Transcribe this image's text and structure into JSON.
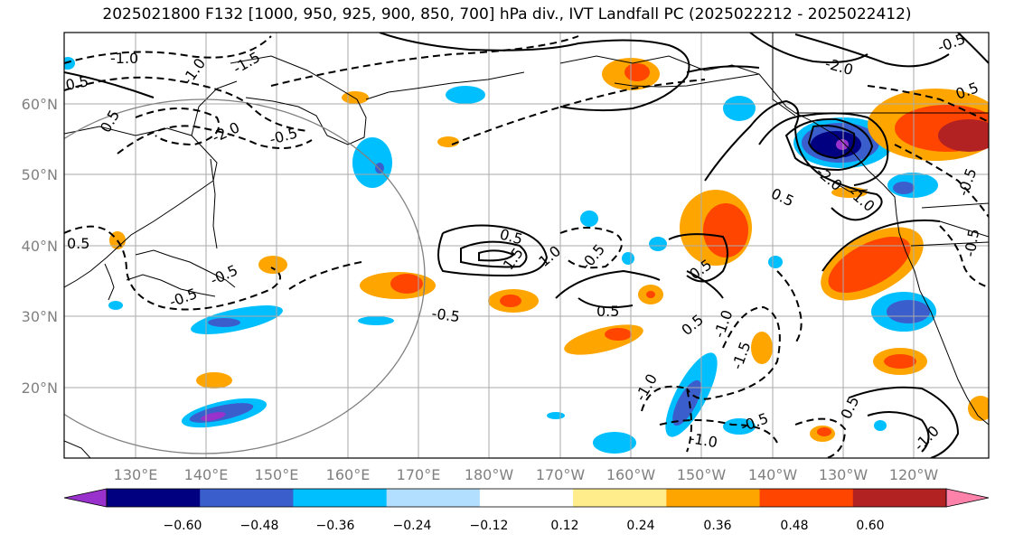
{
  "title": "2025021800 F132 [1000, 950, 925, 900, 850, 700] hPa div., IVT Landfall PC (2025022212 - 2025022412)",
  "map": {
    "lon_labels": [
      "130°E",
      "140°E",
      "150°E",
      "160°E",
      "170°E",
      "180°W",
      "170°W",
      "160°W",
      "150°W",
      "140°W",
      "130°W",
      "120°W"
    ],
    "lat_labels": [
      "60°N",
      "50°N",
      "40°N",
      "30°N",
      "20°N"
    ],
    "contour_labels": [
      "-1.0",
      "0.5",
      "-1.0",
      "-1.5",
      "0.5",
      "-2.0",
      "-0.5",
      "0.5",
      "-0.5",
      "-0.5",
      "0.5",
      "-0.5",
      "1.5",
      "-0.5",
      "0.5",
      "0.5",
      "0.5",
      "-1.0",
      "-1.5",
      "-1.0",
      "-0.5",
      "-1.0",
      "-2.0",
      "-2.0",
      "0.5",
      "-1.0",
      "-0.5",
      "-0.5",
      "-0.5",
      "0.5",
      "-1.0",
      "0.5",
      "1.0"
    ]
  },
  "colorbar": {
    "tick_labels": [
      "−0.60",
      "−0.48",
      "−0.36",
      "−0.24",
      "−0.12",
      "0.12",
      "0.24",
      "0.36",
      "0.48",
      "0.60"
    ],
    "colors": [
      "#9932cc",
      "#000080",
      "#3a5fcd",
      "#00bfff",
      "#b2dfff",
      "#ffffff",
      "#ffec8b",
      "#ffa500",
      "#ff4500",
      "#b22222",
      "#ff82ab"
    ]
  }
}
